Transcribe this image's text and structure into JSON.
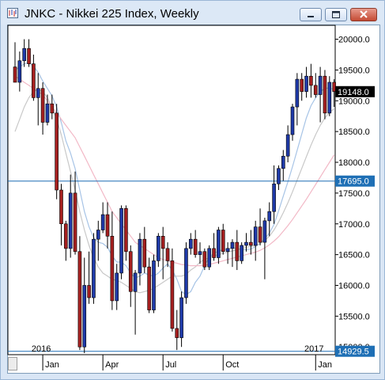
{
  "window": {
    "title": "JNKC - Nikkei 225 Index, Weekly"
  },
  "colors": {
    "up": "#1f3aa8",
    "down": "#a52020",
    "ma_fast": "#a7c4e6",
    "ma_mid": "#c8c8c8",
    "ma_slow": "#f2b8c6",
    "hline": "#1e6fb5"
  },
  "price_axis": {
    "labels": [
      "20000.0",
      "19500.0",
      "19000.0",
      "18500.0",
      "18000.0",
      "17500.0",
      "17000.0",
      "16500.0",
      "16000.0",
      "15500.0",
      "15000.0"
    ],
    "current_price": "19148.0",
    "line_upper": "17695.0",
    "line_lower": "14929.5"
  },
  "time_axis": {
    "month_labels": [
      "Jan",
      "Apr",
      "Jul",
      "Oct",
      "Jan"
    ],
    "year_labels": [
      "2016",
      "2017"
    ]
  },
  "chart_data": {
    "type": "candlestick",
    "ylim": [
      14900,
      20200
    ],
    "horizontal_lines": [
      17695.0,
      14929.5
    ],
    "current_price": 19148.0,
    "candles": [
      [
        19550,
        19950,
        19350,
        19300
      ],
      [
        19300,
        19800,
        19150,
        19650
      ],
      [
        19650,
        20000,
        19550,
        19850
      ],
      [
        19850,
        20000,
        19550,
        19600
      ],
      [
        19600,
        19750,
        19000,
        19050
      ],
      [
        19050,
        19450,
        18600,
        19200
      ],
      [
        19200,
        19300,
        18450,
        18650
      ],
      [
        18650,
        19100,
        18600,
        18950
      ],
      [
        18950,
        19100,
        18700,
        18800
      ],
      [
        18800,
        18950,
        17400,
        17550
      ],
      [
        17550,
        17650,
        16650,
        17000
      ],
      [
        17000,
        17050,
        16400,
        16600
      ],
      [
        16600,
        17800,
        16450,
        17500
      ],
      [
        17500,
        17850,
        16500,
        16550
      ],
      [
        16550,
        16800,
        14950,
        15000
      ],
      [
        15000,
        16450,
        14900,
        16000
      ],
      [
        16000,
        16550,
        15700,
        15800
      ],
      [
        15800,
        16850,
        15700,
        16750
      ],
      [
        16750,
        17050,
        16400,
        16900
      ],
      [
        16900,
        17350,
        16850,
        17150
      ],
      [
        17150,
        17350,
        16600,
        16800
      ],
      [
        16800,
        17200,
        15600,
        15750
      ],
      [
        15750,
        16350,
        15600,
        16200
      ],
      [
        16200,
        17300,
        16100,
        17250
      ],
      [
        17250,
        17300,
        16400,
        16550
      ],
      [
        16550,
        16650,
        15650,
        15900
      ],
      [
        15900,
        16250,
        15200,
        16200
      ],
      [
        16200,
        16850,
        16000,
        16750
      ],
      [
        16750,
        16950,
        16200,
        16300
      ],
      [
        16300,
        16450,
        15550,
        15600
      ],
      [
        15600,
        16500,
        15550,
        16400
      ],
      [
        16400,
        16850,
        16300,
        16800
      ],
      [
        16800,
        16950,
        16100,
        16600
      ],
      [
        16600,
        16700,
        16300,
        16400
      ],
      [
        16400,
        16600,
        15250,
        15300
      ],
      [
        15300,
        15600,
        14950,
        15150
      ],
      [
        15150,
        15900,
        15000,
        15800
      ],
      [
        15800,
        16700,
        15700,
        16600
      ],
      [
        16600,
        16850,
        16500,
        16750
      ],
      [
        16750,
        16900,
        16450,
        16500
      ],
      [
        16500,
        16700,
        16350,
        16550
      ],
      [
        16550,
        16600,
        16250,
        16300
      ],
      [
        16300,
        16650,
        16250,
        16600
      ],
      [
        16600,
        16850,
        16400,
        16450
      ],
      [
        16450,
        16950,
        16350,
        16900
      ],
      [
        16900,
        17000,
        16500,
        16550
      ],
      [
        16550,
        16700,
        16350,
        16600
      ],
      [
        16600,
        16750,
        16300,
        16700
      ],
      [
        16700,
        16900,
        16250,
        16400
      ],
      [
        16400,
        16700,
        16350,
        16650
      ],
      [
        16650,
        16850,
        16550,
        16700
      ],
      [
        16700,
        16900,
        16500,
        16650
      ],
      [
        16650,
        17050,
        16400,
        16950
      ],
      [
        16950,
        17250,
        16650,
        16700
      ],
      [
        16700,
        17100,
        16100,
        17050
      ],
      [
        17050,
        17350,
        16800,
        17200
      ],
      [
        17200,
        17950,
        17000,
        17650
      ],
      [
        17650,
        17950,
        17550,
        17900
      ],
      [
        17900,
        18200,
        17700,
        18100
      ],
      [
        18100,
        18600,
        18000,
        18450
      ],
      [
        18450,
        18950,
        18350,
        18900
      ],
      [
        18900,
        19450,
        18600,
        19350
      ],
      [
        19350,
        19450,
        19000,
        19150
      ],
      [
        19150,
        19550,
        19050,
        19400
      ],
      [
        19400,
        19600,
        19050,
        19250
      ],
      [
        19250,
        19450,
        19050,
        19100
      ],
      [
        19100,
        19550,
        18650,
        19400
      ],
      [
        19400,
        19500,
        18700,
        18800
      ],
      [
        18800,
        19400,
        18750,
        19300
      ],
      [
        19300,
        19350,
        18900,
        19150
      ]
    ],
    "moving_averages": [
      {
        "values": [
          19500,
          19550,
          19600,
          19620,
          19560,
          19460,
          19320,
          19200,
          19080,
          18900,
          18650,
          18350,
          18150,
          17900,
          17550,
          17200,
          16950,
          16780,
          16700,
          16680,
          16620,
          16480,
          16380,
          16380,
          16320,
          16200,
          16120,
          16150,
          16200,
          16170,
          16150,
          16200,
          16280,
          16350,
          16250,
          16100,
          15900,
          15850,
          15900,
          16050,
          16150,
          16320,
          16460,
          16520,
          16560,
          16580,
          16590,
          16610,
          16600,
          16580,
          16580,
          16590,
          16630,
          16680,
          16760,
          16850,
          16990,
          17210,
          17450,
          17680,
          17930,
          18190,
          18460,
          18720,
          18920,
          19050,
          19150,
          19200,
          19210,
          19180
        ]
      },
      {
        "values": [
          18500,
          18700,
          18900,
          19050,
          19150,
          19180,
          19150,
          19050,
          18900,
          18700,
          18450,
          18150,
          17850,
          17550,
          17200,
          16900,
          16650,
          16450,
          16300,
          16200,
          16150,
          16100,
          16080,
          16050,
          16000,
          15950,
          15900,
          15880,
          15900,
          15920,
          15950,
          16000,
          16050,
          16100,
          16150,
          16150,
          16150,
          16180,
          16250,
          16300,
          16380,
          16420,
          16450,
          16480,
          16500,
          16520,
          16540,
          16560,
          16580,
          16600,
          16620,
          16630,
          16650,
          16680,
          16730,
          16800,
          16900,
          17030,
          17180,
          17340,
          17520,
          17710,
          17900,
          18090,
          18280,
          18450,
          18600,
          18720,
          18810,
          18870
        ]
      },
      {
        "values": [
          19400,
          19350,
          19300,
          19250,
          19200,
          19150,
          19100,
          19000,
          18900,
          18800,
          18700,
          18600,
          18500,
          18400,
          18250,
          18100,
          17950,
          17800,
          17650,
          17500,
          17350,
          17200,
          17100,
          17000,
          16900,
          16800,
          16700,
          16650,
          16600,
          16550,
          16500,
          16450,
          16420,
          16400,
          16380,
          16360,
          16340,
          16330,
          16320,
          16320,
          16320,
          16330,
          16340,
          16360,
          16380,
          16400,
          16420,
          16440,
          16460,
          16480,
          16500,
          16520,
          16540,
          16570,
          16610,
          16660,
          16720,
          16790,
          16880,
          16970,
          17070,
          17180,
          17290,
          17400,
          17520,
          17640,
          17760,
          17880,
          18000,
          18120
        ]
      }
    ],
    "x_ticks": [
      {
        "label": "Jan",
        "index": 6
      },
      {
        "label": "Apr",
        "index": 19
      },
      {
        "label": "Jul",
        "index": 32
      },
      {
        "label": "Oct",
        "index": 45
      },
      {
        "label": "Jan",
        "index": 65
      }
    ],
    "year_ticks": [
      {
        "label": "2016",
        "index": 6
      },
      {
        "label": "2017",
        "index": 65
      }
    ]
  }
}
